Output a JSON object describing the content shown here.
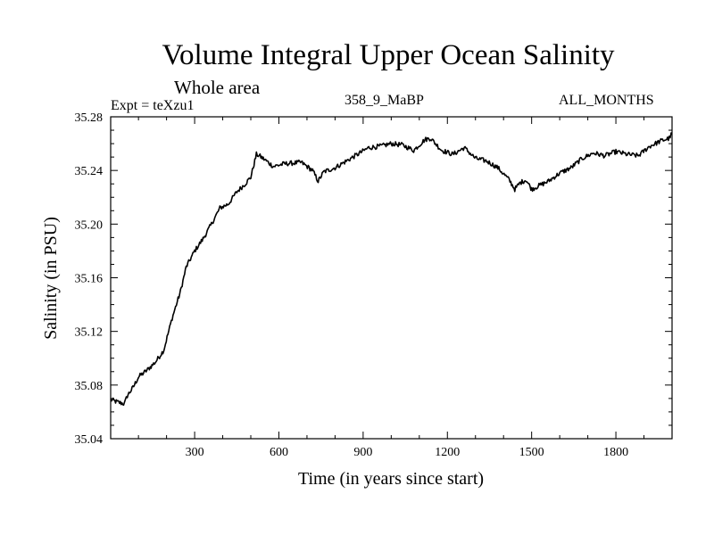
{
  "header": {
    "title": "Volume Integral Upper Ocean Salinity",
    "subtitle": "Whole area",
    "expt": "Expt = teXzu1",
    "case_id": "358_9_MaBP",
    "months": "ALL_MONTHS"
  },
  "chart_data": {
    "type": "line",
    "title": "Volume Integral Upper Ocean Salinity",
    "xlabel": "Time (in years since start)",
    "ylabel": "Salinity (in PSU)",
    "xlim": [
      1,
      2000
    ],
    "ylim": [
      35.04,
      35.28
    ],
    "xticks": [
      300,
      600,
      900,
      1200,
      1500,
      1800
    ],
    "xtick_labels": [
      "300",
      "600",
      "900",
      "1200",
      "1500",
      "1800"
    ],
    "yticks": [
      35.04,
      35.08,
      35.12,
      35.16,
      35.2,
      35.24,
      35.28
    ],
    "ytick_labels": [
      "35.04",
      "35.08",
      "35.12",
      "35.16",
      "35.20",
      "35.24",
      "35.28"
    ],
    "grid": false,
    "legend": "none",
    "series": [
      {
        "name": "salinity",
        "color": "#000000",
        "x": [
          1,
          30,
          50,
          60,
          80,
          100,
          130,
          160,
          190,
          220,
          250,
          270,
          300,
          330,
          360,
          390,
          420,
          450,
          480,
          500,
          520,
          530,
          550,
          580,
          620,
          680,
          720,
          740,
          760,
          800,
          840,
          880,
          920,
          960,
          1000,
          1040,
          1080,
          1120,
          1140,
          1180,
          1220,
          1260,
          1300,
          1340,
          1380,
          1420,
          1440,
          1460,
          1480,
          1500,
          1520,
          1560,
          1600,
          1640,
          1680,
          1720,
          1760,
          1800,
          1840,
          1880,
          1920,
          1960,
          1990,
          2000
        ],
        "y": [
          35.069,
          35.067,
          35.066,
          35.072,
          35.078,
          35.086,
          35.091,
          35.097,
          35.106,
          35.13,
          35.15,
          35.168,
          35.18,
          35.189,
          35.2,
          35.212,
          35.215,
          35.224,
          35.23,
          35.235,
          35.252,
          35.251,
          35.248,
          35.243,
          35.245,
          35.246,
          35.24,
          35.232,
          35.239,
          35.242,
          35.247,
          35.252,
          35.257,
          35.258,
          35.26,
          35.259,
          35.255,
          35.263,
          35.264,
          35.255,
          35.252,
          35.257,
          35.249,
          35.247,
          35.242,
          35.233,
          35.226,
          35.231,
          35.233,
          35.226,
          35.228,
          35.232,
          35.238,
          35.242,
          35.249,
          35.253,
          35.251,
          35.254,
          35.252,
          35.251,
          35.258,
          35.262,
          35.264,
          35.268
        ]
      }
    ]
  }
}
